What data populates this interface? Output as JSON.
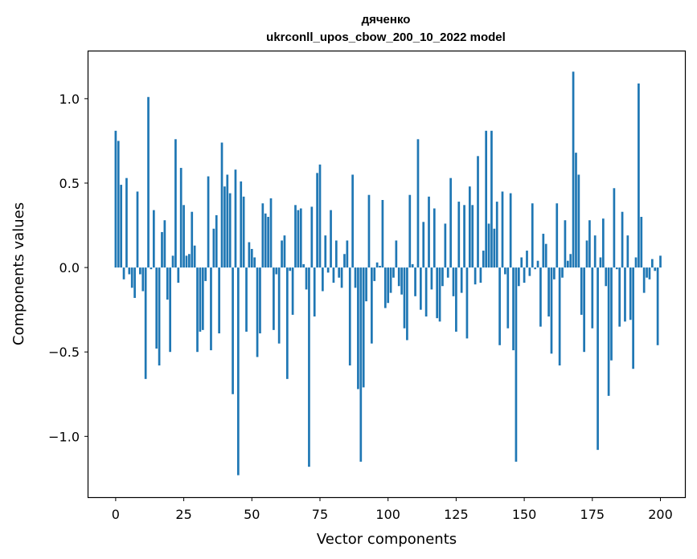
{
  "chart_data": {
    "type": "bar",
    "title": "дяченко",
    "subtitle": "ukrconll_upos_cbow_200_10_2022 model",
    "xlabel": "Vector components",
    "ylabel": "Components values",
    "xlim": [
      -10,
      209
    ],
    "ylim": [
      -1.36,
      1.28
    ],
    "xticks": [
      0,
      25,
      50,
      75,
      100,
      125,
      150,
      175,
      200
    ],
    "yticks": [
      -1.0,
      -0.5,
      0.0,
      0.5,
      1.0
    ],
    "ytick_labels": [
      "−1.0",
      "−0.5",
      "0.0",
      "0.5",
      "1.0"
    ],
    "color": "#1f77b4",
    "grid": false,
    "legend": "none",
    "values": [
      0.81,
      0.75,
      0.49,
      -0.07,
      0.53,
      -0.04,
      -0.12,
      -0.18,
      0.45,
      -0.04,
      -0.14,
      -0.66,
      1.01,
      -0.01,
      0.34,
      -0.48,
      -0.58,
      0.21,
      0.28,
      -0.19,
      -0.5,
      0.07,
      0.76,
      -0.09,
      0.59,
      0.37,
      0.07,
      0.08,
      0.33,
      0.13,
      -0.5,
      -0.38,
      -0.37,
      -0.08,
      0.54,
      -0.49,
      0.23,
      0.31,
      -0.39,
      0.74,
      0.48,
      0.55,
      0.44,
      -0.75,
      0.58,
      -1.23,
      0.51,
      0.42,
      -0.38,
      0.15,
      0.11,
      0.06,
      -0.53,
      -0.39,
      0.38,
      0.32,
      0.3,
      0.41,
      -0.37,
      -0.04,
      -0.45,
      0.16,
      0.19,
      -0.66,
      -0.02,
      -0.28,
      0.37,
      0.34,
      0.35,
      0.02,
      -0.13,
      -1.18,
      0.36,
      -0.29,
      0.56,
      0.61,
      -0.14,
      0.19,
      -0.03,
      0.34,
      -0.09,
      0.16,
      -0.06,
      -0.12,
      0.08,
      0.16,
      -0.58,
      0.55,
      -0.12,
      -0.72,
      -1.15,
      -0.71,
      -0.2,
      0.43,
      -0.45,
      -0.08,
      0.03,
      0.01,
      0.4,
      -0.24,
      -0.21,
      -0.15,
      -0.06,
      0.16,
      -0.11,
      -0.16,
      -0.36,
      -0.43,
      0.43,
      0.02,
      -0.17,
      0.76,
      -0.25,
      0.27,
      -0.29,
      0.42,
      -0.13,
      0.35,
      -0.3,
      -0.32,
      -0.11,
      0.26,
      -0.06,
      0.53,
      -0.17,
      -0.38,
      0.39,
      -0.15,
      0.37,
      -0.42,
      0.48,
      0.37,
      -0.1,
      0.66,
      -0.09,
      0.1,
      0.81,
      0.26,
      0.81,
      0.23,
      0.39,
      -0.46,
      0.45,
      -0.04,
      -0.36,
      0.44,
      -0.49,
      -1.15,
      -0.11,
      0.06,
      -0.09,
      0.1,
      -0.05,
      0.38,
      -0.01,
      0.04,
      -0.35,
      0.2,
      0.14,
      -0.29,
      -0.51,
      -0.07,
      0.38,
      -0.58,
      -0.06,
      0.28,
      0.04,
      0.08,
      1.16,
      0.68,
      0.55,
      -0.28,
      -0.5,
      0.16,
      0.28,
      -0.36,
      0.19,
      -1.08,
      0.06,
      0.29,
      -0.11,
      -0.76,
      -0.55,
      0.47,
      -0.01,
      -0.35,
      0.33,
      -0.32,
      0.19,
      -0.31,
      -0.6,
      0.06,
      1.09,
      0.3,
      -0.15,
      -0.06,
      -0.07,
      0.05,
      -0.02,
      -0.46,
      0.07
    ]
  }
}
